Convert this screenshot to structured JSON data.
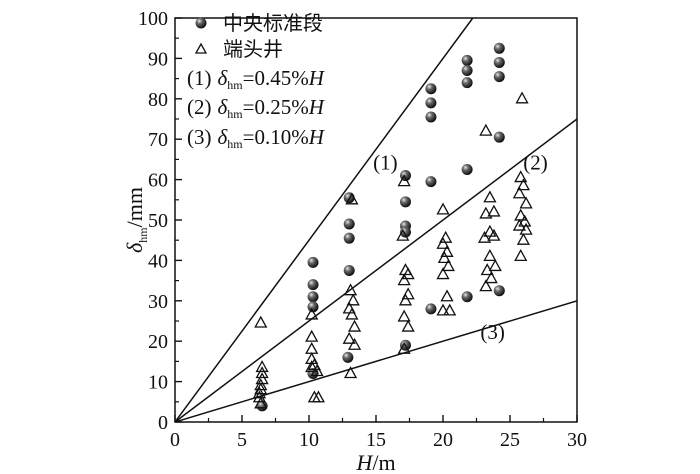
{
  "chart_data": {
    "type": "scatter",
    "xlabel": {
      "symbol": "H",
      "unit": "/m"
    },
    "ylabel": {
      "symbol": "δ",
      "sub": "hm",
      "unit": "/mm"
    },
    "xlim": [
      0,
      30
    ],
    "ylim": [
      0,
      100
    ],
    "x_ticks": [
      "0",
      "5",
      "10",
      "15",
      "20",
      "25",
      "30"
    ],
    "y_ticks": [
      "0",
      "10",
      "20",
      "30",
      "40",
      "50",
      "60",
      "70",
      "80",
      "90",
      "100"
    ],
    "legend": {
      "position": "top-left",
      "entries": [
        {
          "marker": "sphere",
          "label": "中央标准段"
        },
        {
          "marker": "triangle",
          "label": "端头井"
        },
        {
          "prefix": "(1)",
          "symbol": "δ",
          "sub": "hm",
          "rest": "=0.45%",
          "var": "H"
        },
        {
          "prefix": "(2)",
          "symbol": "δ",
          "sub": "hm",
          "rest": "=0.25%",
          "var": "H"
        },
        {
          "prefix": "(3)",
          "symbol": "δ",
          "sub": "hm",
          "rest": "=0.10%",
          "var": "H"
        }
      ]
    },
    "lines": [
      {
        "label": "(1)",
        "slope_mm_per_m": 4.5,
        "label_at": [
          15.7,
          62.5
        ]
      },
      {
        "label": "(2)",
        "slope_mm_per_m": 2.5,
        "label_at": [
          26.9,
          62.5
        ]
      },
      {
        "label": "(3)",
        "slope_mm_per_m": 1.0,
        "label_at": [
          23.7,
          20.5
        ]
      }
    ],
    "series": [
      {
        "name": "中央标准段",
        "marker": "sphere",
        "points": [
          [
            6.5,
            4
          ],
          [
            10.3,
            39.5
          ],
          [
            10.3,
            34
          ],
          [
            10.3,
            31
          ],
          [
            10.3,
            28.5
          ],
          [
            10.3,
            12
          ],
          [
            13.0,
            55.5
          ],
          [
            13.0,
            49
          ],
          [
            13.0,
            45.5
          ],
          [
            13.0,
            37.5
          ],
          [
            12.9,
            16
          ],
          [
            17.2,
            61
          ],
          [
            17.2,
            54.5
          ],
          [
            17.2,
            48.5
          ],
          [
            17.2,
            47
          ],
          [
            17.2,
            19
          ],
          [
            19.1,
            82.5
          ],
          [
            19.1,
            79
          ],
          [
            19.1,
            75.5
          ],
          [
            19.1,
            59.5
          ],
          [
            19.1,
            28
          ],
          [
            21.8,
            89.5
          ],
          [
            21.8,
            87
          ],
          [
            21.8,
            84
          ],
          [
            21.8,
            62.5
          ],
          [
            21.8,
            31
          ],
          [
            24.2,
            92.5
          ],
          [
            24.2,
            89
          ],
          [
            24.2,
            85.5
          ],
          [
            24.2,
            70.5
          ],
          [
            24.2,
            32.5
          ]
        ]
      },
      {
        "name": "端头井",
        "marker": "triangle",
        "points": [
          [
            6.4,
            24.5
          ],
          [
            6.5,
            13.5
          ],
          [
            6.5,
            12
          ],
          [
            6.5,
            10.5
          ],
          [
            6.4,
            9
          ],
          [
            6.4,
            8
          ],
          [
            6.3,
            7
          ],
          [
            6.3,
            6
          ],
          [
            6.4,
            4.5
          ],
          [
            10.2,
            26.5
          ],
          [
            10.2,
            21
          ],
          [
            10.2,
            18
          ],
          [
            10.2,
            15.5
          ],
          [
            10.2,
            13.5
          ],
          [
            10.4,
            14
          ],
          [
            10.6,
            12.5
          ],
          [
            10.4,
            6
          ],
          [
            10.7,
            6
          ],
          [
            13.2,
            55
          ],
          [
            13.1,
            32.5
          ],
          [
            13.3,
            30
          ],
          [
            13.0,
            28
          ],
          [
            13.2,
            26.5
          ],
          [
            13.4,
            23.5
          ],
          [
            13.0,
            20.5
          ],
          [
            13.4,
            19
          ],
          [
            13.1,
            12
          ],
          [
            17.1,
            59.5
          ],
          [
            17.0,
            46
          ],
          [
            17.2,
            37.5
          ],
          [
            17.4,
            36.5
          ],
          [
            17.1,
            35
          ],
          [
            17.4,
            31.5
          ],
          [
            17.2,
            30
          ],
          [
            17.1,
            26
          ],
          [
            17.4,
            23.5
          ],
          [
            17.1,
            18
          ],
          [
            20.0,
            52.5
          ],
          [
            20.2,
            45.5
          ],
          [
            20.0,
            44
          ],
          [
            20.3,
            42
          ],
          [
            20.1,
            40.5
          ],
          [
            20.4,
            38.5
          ],
          [
            20.0,
            36.5
          ],
          [
            20.3,
            31
          ],
          [
            20.0,
            27.5
          ],
          [
            20.5,
            27.5
          ],
          [
            23.2,
            72
          ],
          [
            23.5,
            55.5
          ],
          [
            23.8,
            52
          ],
          [
            23.2,
            51.5
          ],
          [
            23.5,
            47
          ],
          [
            23.8,
            46
          ],
          [
            23.1,
            45.5
          ],
          [
            23.5,
            41
          ],
          [
            23.9,
            38.5
          ],
          [
            23.3,
            37.5
          ],
          [
            23.6,
            35.5
          ],
          [
            23.2,
            33.5
          ],
          [
            25.9,
            80
          ],
          [
            25.8,
            60.5
          ],
          [
            26.0,
            58.5
          ],
          [
            25.7,
            56.5
          ],
          [
            26.2,
            54
          ],
          [
            25.8,
            51
          ],
          [
            26.1,
            49.5
          ],
          [
            25.7,
            48.5
          ],
          [
            26.2,
            47.5
          ],
          [
            26.0,
            45
          ],
          [
            25.8,
            41
          ]
        ]
      }
    ]
  }
}
